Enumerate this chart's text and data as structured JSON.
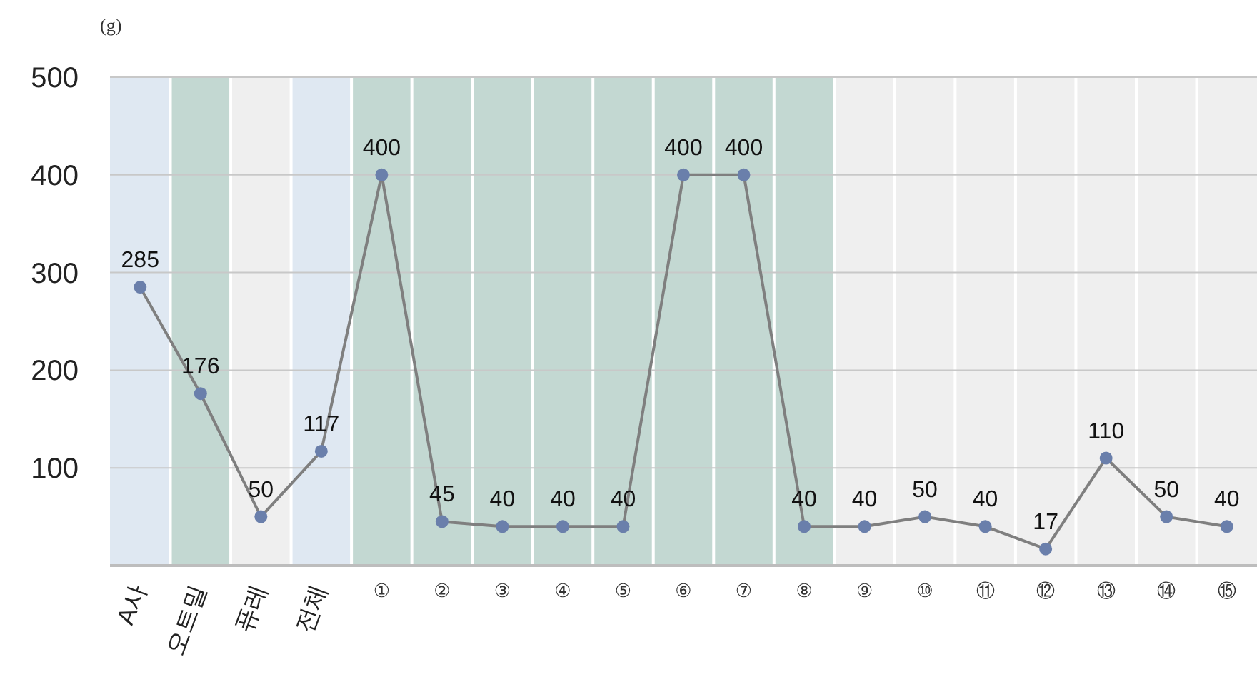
{
  "chart_data": {
    "type": "line",
    "ylabel": "(g)",
    "categories": [
      "A사",
      "오트밀",
      "퓨레",
      "전체",
      "①",
      "②",
      "③",
      "④",
      "⑤",
      "⑥",
      "⑦",
      "⑧",
      "⑨",
      "⑩",
      "⑪",
      "⑫",
      "⑬",
      "⑭",
      "⑮"
    ],
    "series": [
      {
        "color": "#7f7f7f",
        "values": [
          285,
          176,
          50,
          117,
          400,
          45,
          40,
          40,
          40,
          400,
          400,
          40,
          40,
          50,
          40,
          17,
          110,
          50,
          40
        ]
      }
    ],
    "marker": "circle",
    "line_style": "solid",
    "data_labels": true,
    "grid": "y",
    "ylim": [
      0,
      500
    ],
    "yticks": [
      {
        "value": 0,
        "label": null
      },
      100,
      200,
      300,
      400,
      500
    ],
    "bands": [
      {
        "axis": "x",
        "from": "A사",
        "to": "A사",
        "color": "#dfe8f2"
      },
      {
        "axis": "x",
        "from": "오트밀",
        "to": "오트밀",
        "color": "#c3d8d2"
      },
      {
        "axis": "x",
        "from": "퓨레",
        "to": "퓨레",
        "color": "#efefef"
      },
      {
        "axis": "x",
        "from": "전체",
        "to": "전체",
        "color": "#dfe8f2"
      },
      {
        "axis": "x",
        "from": "①",
        "to": "⑧",
        "color": "#c3d8d2"
      },
      {
        "axis": "x",
        "from": "⑨",
        "to": "⑮",
        "color": "#efefef"
      }
    ]
  }
}
